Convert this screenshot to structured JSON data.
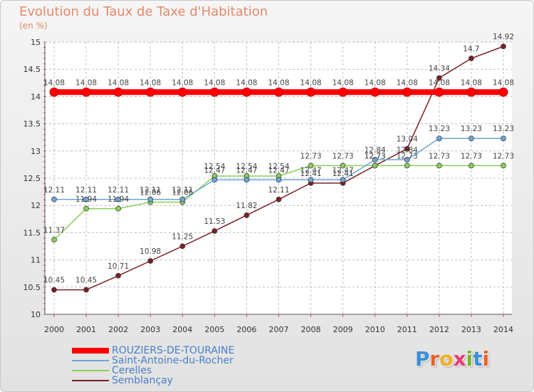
{
  "colors": {
    "title": "#e38a6b",
    "axis_text": "#333333",
    "grid": "#bdbdbd",
    "tick": "#e05050"
  },
  "header": {
    "title": "Evolution du Taux de Taxe d'Habitation",
    "subtitle": "(en %)"
  },
  "logo": {
    "text": "Proxiti",
    "letters": [
      "P",
      "r",
      "o",
      "x",
      "i",
      "t",
      "i"
    ],
    "letter_colors": [
      "#3b8fd6",
      "#e8622c",
      "#f0b020",
      "#e83a78",
      "#7ab62a",
      "#3b8fd6",
      "#e8622c"
    ]
  },
  "chart_data": {
    "type": "line",
    "x": [
      2000,
      2001,
      2002,
      2003,
      2004,
      2005,
      2006,
      2007,
      2008,
      2009,
      2010,
      2011,
      2012,
      2013,
      2014
    ],
    "ylim": [
      10,
      15
    ],
    "yticks": [
      "10",
      "10.5",
      "11",
      "11.5",
      "12",
      "12.5",
      "13",
      "13.5",
      "14",
      "14.5",
      "15"
    ],
    "ytick_values": [
      10,
      10.5,
      11,
      11.5,
      12,
      12.5,
      13,
      13.5,
      14,
      14.5,
      15
    ],
    "grid": true,
    "legend_position": "bottom-left",
    "series": [
      {
        "name": "ROUZIERS-DE-TOURAINE",
        "color": "#ff0000",
        "values": [
          14.08,
          14.08,
          14.08,
          14.08,
          14.08,
          14.08,
          14.08,
          14.08,
          14.08,
          14.08,
          14.08,
          14.08,
          14.08,
          14.08,
          14.08
        ],
        "labels": [
          "14.08",
          "14.08",
          "14.08",
          "14.08",
          "14.08",
          "14.08",
          "14.08",
          "14.08",
          "14.08",
          "14.08",
          "14.08",
          "14.08",
          "14.08",
          "14.08",
          "14.08"
        ]
      },
      {
        "name": "Saint-Antoine-du-Rocher",
        "color": "#6fa6d8",
        "values": [
          12.11,
          12.11,
          12.11,
          12.11,
          12.11,
          12.47,
          12.47,
          12.47,
          12.47,
          12.47,
          12.84,
          12.84,
          13.23,
          13.23,
          13.23
        ],
        "labels": [
          "12.11",
          "12.11",
          "12.11",
          "12.11",
          "12.11",
          "12.47",
          "12.47",
          "12.47",
          "12.47",
          "12.47",
          "12.84",
          "12.84",
          "13.23",
          "13.23",
          "13.23"
        ]
      },
      {
        "name": "Cerelles",
        "color": "#8ad05a",
        "values": [
          11.37,
          11.94,
          11.94,
          12.06,
          12.06,
          12.54,
          12.54,
          12.54,
          12.73,
          12.73,
          12.73,
          12.73,
          12.73,
          12.73,
          12.73
        ],
        "labels": [
          "11.37",
          "11.94",
          "11.94",
          "12.06",
          "12.06",
          "12.54",
          "12.54",
          "12.54",
          "12.73",
          "12.73",
          "12.73",
          "12.73",
          "12.73",
          "12.73",
          "12.73"
        ]
      },
      {
        "name": "Semblançay",
        "color": "#7a1f24",
        "values": [
          10.45,
          10.45,
          10.71,
          10.98,
          11.25,
          11.53,
          11.82,
          12.11,
          12.41,
          12.41,
          12.73,
          13.04,
          14.34,
          14.7,
          14.92
        ],
        "labels": [
          "10.45",
          "10.45",
          "10.71",
          "10.98",
          "11.25",
          "11.53",
          "11.82",
          "12.11",
          "12.41",
          "12.41",
          "12.73",
          "13.04",
          "14.34",
          "14.7",
          "14.92"
        ]
      }
    ]
  }
}
